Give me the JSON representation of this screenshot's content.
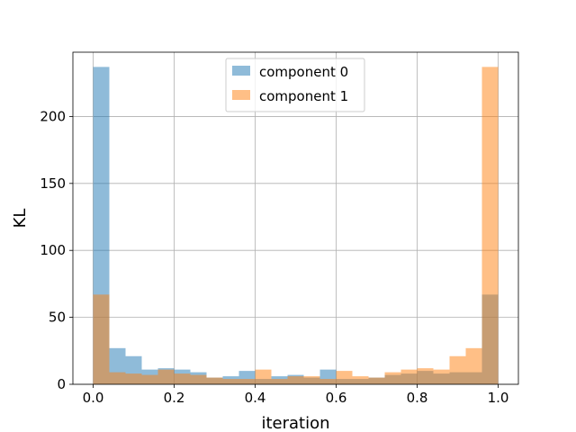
{
  "chart_data": {
    "type": "bar",
    "title": "",
    "xlabel": "iteration",
    "ylabel": "KL",
    "xlim": [
      -0.05,
      1.05
    ],
    "ylim": [
      0,
      248
    ],
    "grid": true,
    "legend_position": "top-center",
    "bin_edges": [
      0.0,
      0.04,
      0.08,
      0.12,
      0.16,
      0.2,
      0.24,
      0.28,
      0.32,
      0.36,
      0.4,
      0.44,
      0.48,
      0.52,
      0.56,
      0.6,
      0.64,
      0.68,
      0.72,
      0.76,
      0.8,
      0.84,
      0.88,
      0.92,
      0.96,
      1.0
    ],
    "xticks": [
      {
        "value": 0.0,
        "label": "0.0"
      },
      {
        "value": 0.2,
        "label": "0.2"
      },
      {
        "value": 0.4,
        "label": "0.4"
      },
      {
        "value": 0.6,
        "label": "0.6"
      },
      {
        "value": 0.8,
        "label": "0.8"
      },
      {
        "value": 1.0,
        "label": "1.0"
      }
    ],
    "yticks": [
      {
        "value": 0,
        "label": "0"
      },
      {
        "value": 50,
        "label": "50"
      },
      {
        "value": 100,
        "label": "100"
      },
      {
        "value": 150,
        "label": "150"
      },
      {
        "value": 200,
        "label": "200"
      }
    ],
    "series": [
      {
        "name": "component 0",
        "color": "#1f77b4",
        "values": [
          237,
          27,
          21,
          11,
          12,
          11,
          9,
          5,
          6,
          10,
          4,
          6,
          7,
          5,
          11,
          4,
          4,
          5,
          7,
          8,
          10,
          8,
          9,
          9,
          67
        ]
      },
      {
        "name": "component 1",
        "color": "#ff7f0e",
        "values": [
          67,
          9,
          8,
          7,
          11,
          8,
          7,
          5,
          4,
          4,
          11,
          4,
          6,
          6,
          4,
          10,
          6,
          5,
          9,
          11,
          12,
          11,
          21,
          27,
          237
        ]
      }
    ]
  }
}
